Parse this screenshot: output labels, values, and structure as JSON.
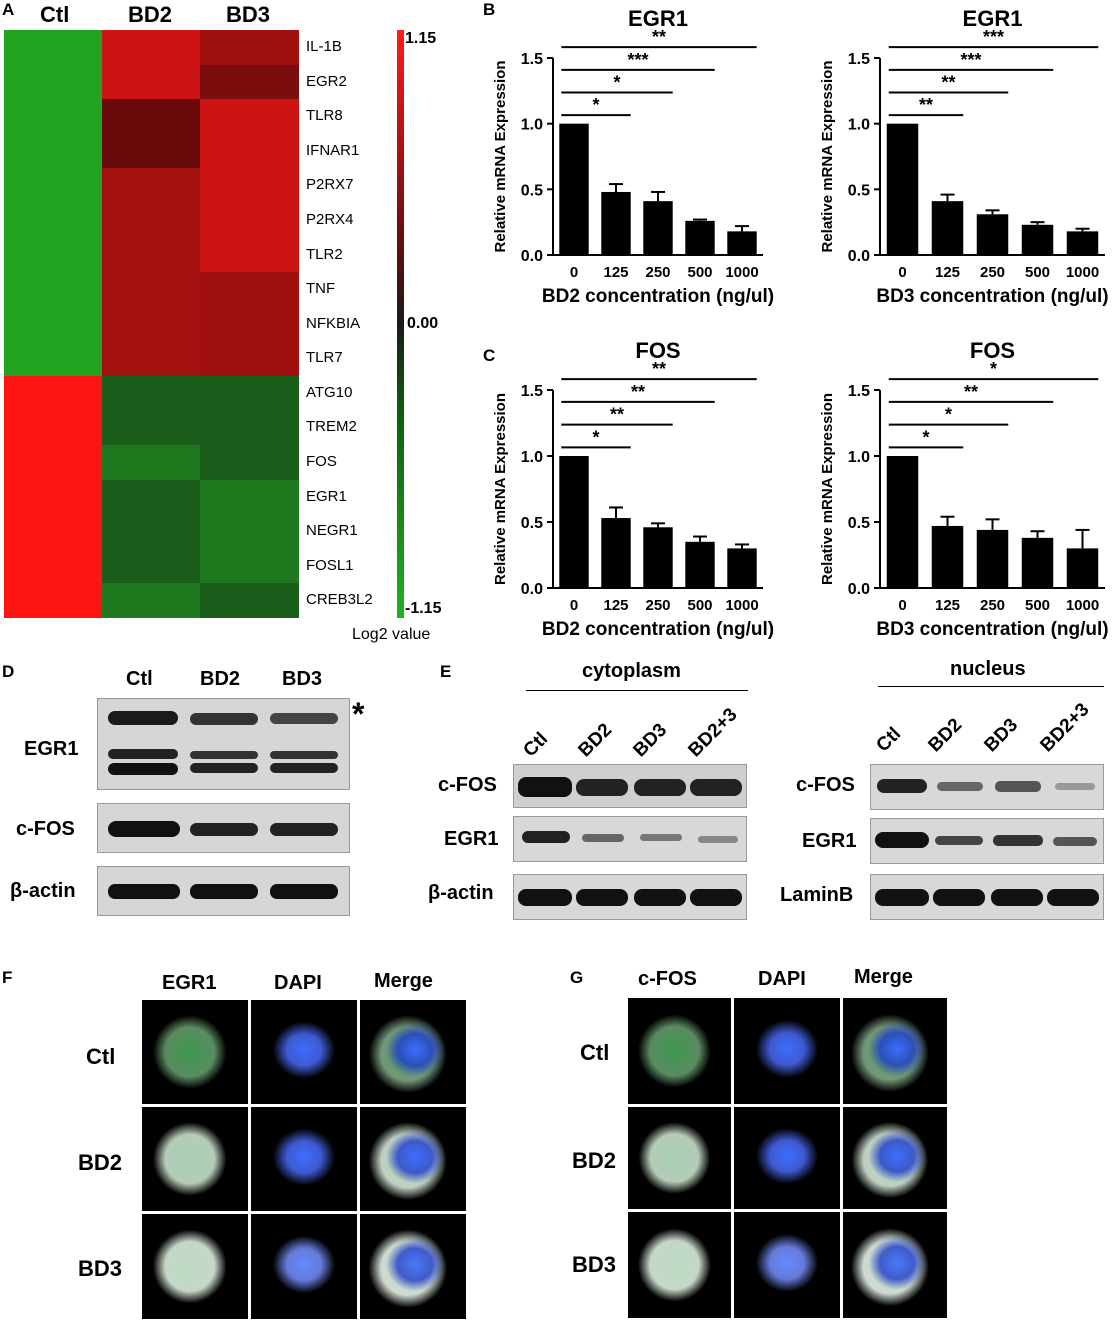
{
  "panel_labels": {
    "A": "A",
    "B": "B",
    "C": "C",
    "D": "D",
    "E": "E",
    "F": "F",
    "G": "G"
  },
  "heatmap": {
    "columns": [
      "Ctl",
      "BD2",
      "BD3"
    ],
    "genes": [
      "IL-1B",
      "EGR2",
      "TLR8",
      "IFNAR1",
      "P2RX7",
      "P2RX4",
      "TLR2",
      "TNF",
      "NFKBIA",
      "TLR7",
      "ATG10",
      "TREM2",
      "FOS",
      "EGR1",
      "NEGR1",
      "FOSL1",
      "CREB3L2"
    ],
    "colorbar": {
      "max_label": "1.15",
      "mid_label": "0.00",
      "min_label": "-1.15",
      "caption": "Log2 value"
    },
    "colors": {
      "high": "#ff1a1a",
      "zero": "#1a1a1a",
      "low": "#22b022"
    }
  },
  "chart_data": [
    {
      "type": "bar",
      "title": "EGR1",
      "xlabel": "BD2 concentration (ng/ul)",
      "ylabel": "Relative mRNA Expression",
      "categories": [
        "0",
        "125",
        "250",
        "500",
        "1000"
      ],
      "values": [
        1.0,
        0.48,
        0.41,
        0.26,
        0.18
      ],
      "errors": [
        0,
        0.06,
        0.07,
        0.01,
        0.04
      ],
      "ylim": [
        0,
        1.5
      ],
      "yticks": [
        "0.0",
        "0.5",
        "1.0",
        "1.5"
      ],
      "significance": [
        "*",
        "*",
        "***",
        "**"
      ]
    },
    {
      "type": "bar",
      "title": "EGR1",
      "xlabel": "BD3 concentration (ng/ul)",
      "ylabel": "Relative mRNA Expression",
      "categories": [
        "0",
        "125",
        "250",
        "500",
        "1000"
      ],
      "values": [
        1.0,
        0.41,
        0.31,
        0.23,
        0.18
      ],
      "errors": [
        0,
        0.05,
        0.03,
        0.02,
        0.02
      ],
      "ylim": [
        0,
        1.5
      ],
      "yticks": [
        "0.0",
        "0.5",
        "1.0",
        "1.5"
      ],
      "significance": [
        "**",
        "**",
        "***",
        "***"
      ]
    },
    {
      "type": "bar",
      "title": "FOS",
      "xlabel": "BD2 concentration (ng/ul)",
      "ylabel": "Relative mRNA Expression",
      "categories": [
        "0",
        "125",
        "250",
        "500",
        "1000"
      ],
      "values": [
        1.0,
        0.53,
        0.46,
        0.35,
        0.3
      ],
      "errors": [
        0,
        0.08,
        0.03,
        0.04,
        0.03
      ],
      "ylim": [
        0,
        1.5
      ],
      "yticks": [
        "0.0",
        "0.5",
        "1.0",
        "1.5"
      ],
      "significance": [
        "*",
        "**",
        "**",
        "**"
      ]
    },
    {
      "type": "bar",
      "title": "FOS",
      "xlabel": "BD3 concentration (ng/ul)",
      "ylabel": "Relative mRNA Expression",
      "categories": [
        "0",
        "125",
        "250",
        "500",
        "1000"
      ],
      "values": [
        1.0,
        0.47,
        0.44,
        0.38,
        0.3
      ],
      "errors": [
        0,
        0.07,
        0.08,
        0.05,
        0.14
      ],
      "ylim": [
        0,
        1.5
      ],
      "yticks": [
        "0.0",
        "0.5",
        "1.0",
        "1.5"
      ],
      "significance": [
        "*",
        "*",
        "**",
        "*"
      ]
    }
  ],
  "panel_d": {
    "columns": [
      "Ctl",
      "BD2",
      "BD3"
    ],
    "rows": [
      "EGR1",
      "c-FOS",
      "β-actin"
    ],
    "asterisk": "*"
  },
  "panel_e": {
    "cytoplasm": {
      "title": "cytoplasm",
      "lanes": [
        "Ctl",
        "BD2",
        "BD3",
        "BD2+3"
      ],
      "rows": [
        "c-FOS",
        "EGR1",
        "β-actin"
      ]
    },
    "nucleus": {
      "title": "nucleus",
      "lanes": [
        "Ctl",
        "BD2",
        "BD3",
        "BD2+3"
      ],
      "rows": [
        "c-FOS",
        "EGR1",
        "LaminB"
      ]
    }
  },
  "panel_f": {
    "columns": [
      "EGR1",
      "DAPI",
      "Merge"
    ],
    "rows": [
      "Ctl",
      "BD2",
      "BD3"
    ]
  },
  "panel_g": {
    "columns": [
      "c-FOS",
      "DAPI",
      "Merge"
    ],
    "rows": [
      "Ctl",
      "BD2",
      "BD3"
    ]
  }
}
